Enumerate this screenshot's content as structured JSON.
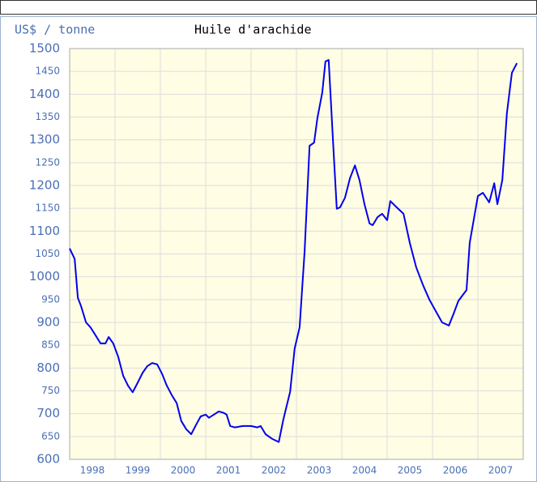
{
  "chart_data": {
    "type": "line",
    "y_unit_label": "US$ / tonne",
    "title": "Huile d'arachide",
    "xlim": [
      1998,
      2008
    ],
    "xticks": [
      1998,
      1999,
      2000,
      2001,
      2002,
      2003,
      2004,
      2005,
      2006,
      2007
    ],
    "ylim": [
      600,
      1500
    ],
    "yticks": [
      600,
      650,
      700,
      750,
      800,
      850,
      900,
      950,
      1000,
      1050,
      1100,
      1150,
      1200,
      1250,
      1300,
      1350,
      1400,
      1450,
      1500
    ],
    "grid": true,
    "series": [
      {
        "name": "Huile d'arachide",
        "color": "#0000ee",
        "x": [
          1998.0,
          1998.11,
          1998.18,
          1998.25,
          1998.36,
          1998.46,
          1998.57,
          1998.68,
          1998.79,
          1998.86,
          1998.96,
          1999.07,
          1999.18,
          1999.29,
          1999.39,
          1999.5,
          1999.61,
          1999.71,
          1999.82,
          1999.93,
          2000.04,
          2000.14,
          2000.25,
          2000.36,
          2000.46,
          2000.57,
          2000.68,
          2000.79,
          2000.89,
          2001.0,
          2001.07,
          2001.18,
          2001.29,
          2001.39,
          2001.46,
          2001.54,
          2001.64,
          2001.82,
          2002.0,
          2002.14,
          2002.21,
          2002.32,
          2002.46,
          2002.61,
          2002.71,
          2002.86,
          2002.96,
          2003.07,
          2003.18,
          2003.29,
          2003.39,
          2003.46,
          2003.57,
          2003.64,
          2003.71,
          2003.82,
          2003.89,
          2003.96,
          2004.07,
          2004.18,
          2004.29,
          2004.39,
          2004.5,
          2004.61,
          2004.68,
          2004.79,
          2004.89,
          2005.0,
          2005.07,
          2005.21,
          2005.36,
          2005.5,
          2005.64,
          2005.79,
          2005.93,
          2006.07,
          2006.21,
          2006.36,
          2006.46,
          2006.57,
          2006.75,
          2006.82,
          2007.0,
          2007.11,
          2007.25,
          2007.36,
          2007.43,
          2007.54,
          2007.64,
          2007.75,
          2007.86
        ],
        "values": [
          1062,
          1039,
          954,
          936,
          900,
          889,
          872,
          854,
          854,
          868,
          854,
          825,
          783,
          761,
          747,
          768,
          790,
          804,
          811,
          808,
          787,
          762,
          741,
          723,
          684,
          666,
          655,
          676,
          694,
          698,
          691,
          698,
          705,
          702,
          698,
          673,
          670,
          673,
          673,
          670,
          673,
          655,
          645,
          638,
          687,
          748,
          843,
          889,
          1056,
          1287,
          1294,
          1347,
          1404,
          1472,
          1475,
          1273,
          1149,
          1152,
          1173,
          1216,
          1244,
          1212,
          1159,
          1117,
          1113,
          1131,
          1138,
          1124,
          1166,
          1152,
          1138,
          1074,
          1021,
          982,
          950,
          925,
          900,
          893,
          918,
          947,
          971,
          1074,
          1177,
          1184,
          1163,
          1205,
          1159,
          1212,
          1358,
          1447,
          1468
        ]
      }
    ]
  }
}
